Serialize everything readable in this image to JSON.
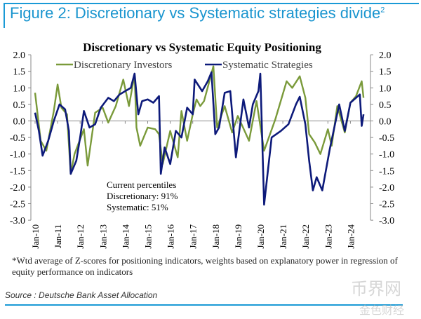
{
  "figure": {
    "title": "Figure 2: Discretionary vs Systematic strategies divide",
    "superscript": "2"
  },
  "footnote": "*Wtd average of Z-scores for positioning indicators, weights based on explanatory power in regression of equity performance on indicators",
  "source": "Source : Deutsche Bank Asset Allocation",
  "watermark": {
    "line1": "币界网",
    "line2": "金色财经"
  },
  "colors": {
    "discretionary": "#7a9a3a",
    "systematic": "#0d1a7a",
    "accent": "#1a9ad6"
  },
  "chart_data": {
    "type": "line",
    "title": "Discretionary  vs Systematic Equity Positioning",
    "ylim": [
      -3.0,
      2.0
    ],
    "y_ticks": [
      "2.0",
      "1.5",
      "1.0",
      "0.5",
      "0.0",
      "-0.5",
      "-1.0",
      "-1.5",
      "-2.0",
      "-2.5",
      "-3.0"
    ],
    "x_ticks": [
      "Jan-10",
      "Jan-11",
      "Jan-12",
      "Jan-13",
      "Jan-14",
      "Jan-15",
      "Jan-16",
      "Jan-17",
      "Jan-18",
      "Jan-19",
      "Jan-20",
      "Jan-21",
      "Jan-22",
      "Jan-23",
      "Jan-24"
    ],
    "grid": false,
    "dual_axis": true,
    "legend_position": "top",
    "annotation": [
      "Current percentiles",
      "Discretionary: 91%",
      "Systematic: 51%"
    ],
    "series": [
      {
        "name": "Discretionary Investors",
        "color": "#7a9a3a",
        "points": [
          [
            "2010-01",
            0.85
          ],
          [
            "2010-04",
            -0.6
          ],
          [
            "2010-07",
            -0.9
          ],
          [
            "2010-11",
            0.3
          ],
          [
            "2011-01",
            1.1
          ],
          [
            "2011-03",
            0.4
          ],
          [
            "2011-06",
            0.2
          ],
          [
            "2011-08",
            -1.6
          ],
          [
            "2011-10",
            -1.0
          ],
          [
            "2012-03",
            -0.25
          ],
          [
            "2012-05",
            -1.35
          ],
          [
            "2012-09",
            0.25
          ],
          [
            "2013-01",
            0.4
          ],
          [
            "2013-04",
            -0.05
          ],
          [
            "2013-08",
            0.45
          ],
          [
            "2013-12",
            1.25
          ],
          [
            "2014-03",
            0.45
          ],
          [
            "2014-06",
            1.4
          ],
          [
            "2014-07",
            -0.2
          ],
          [
            "2014-09",
            -0.75
          ],
          [
            "2015-01",
            -0.2
          ],
          [
            "2015-05",
            -0.25
          ],
          [
            "2015-07",
            -0.4
          ],
          [
            "2015-09",
            -1.3
          ],
          [
            "2016-01",
            -0.3
          ],
          [
            "2016-05",
            -1.1
          ],
          [
            "2016-07",
            0.3
          ],
          [
            "2016-10",
            -0.6
          ],
          [
            "2017-01",
            0.2
          ],
          [
            "2017-03",
            0.65
          ],
          [
            "2017-05",
            0.45
          ],
          [
            "2017-07",
            0.6
          ],
          [
            "2017-12",
            1.65
          ],
          [
            "2018-02",
            -0.2
          ],
          [
            "2018-06",
            0.45
          ],
          [
            "2018-10",
            -0.35
          ],
          [
            "2019-01",
            0.15
          ],
          [
            "2019-07",
            -0.6
          ],
          [
            "2019-11",
            0.6
          ],
          [
            "2020-03",
            -0.9
          ],
          [
            "2020-09",
            0.05
          ],
          [
            "2021-03",
            1.2
          ],
          [
            "2021-06",
            1.0
          ],
          [
            "2021-10",
            1.35
          ],
          [
            "2022-01",
            0.7
          ],
          [
            "2022-03",
            -0.4
          ],
          [
            "2022-06",
            -0.65
          ],
          [
            "2022-09",
            -1.0
          ],
          [
            "2023-01",
            -0.25
          ],
          [
            "2023-03",
            -0.75
          ],
          [
            "2023-06",
            0.45
          ],
          [
            "2023-10",
            -0.35
          ],
          [
            "2024-01",
            0.55
          ],
          [
            "2024-04",
            0.75
          ],
          [
            "2024-07",
            1.2
          ],
          [
            "2024-08",
            0.7
          ]
        ]
      },
      {
        "name": "Systematic Strategies",
        "color": "#0d1a7a",
        "points": [
          [
            "2010-01",
            0.25
          ],
          [
            "2010-03",
            -0.3
          ],
          [
            "2010-05",
            -1.05
          ],
          [
            "2010-08",
            -0.6
          ],
          [
            "2010-11",
            0.0
          ],
          [
            "2011-02",
            0.5
          ],
          [
            "2011-05",
            0.35
          ],
          [
            "2011-07",
            -0.3
          ],
          [
            "2011-08",
            -1.6
          ],
          [
            "2011-11",
            -1.2
          ],
          [
            "2012-01",
            -0.5
          ],
          [
            "2012-03",
            0.3
          ],
          [
            "2012-06",
            -0.2
          ],
          [
            "2012-09",
            -0.1
          ],
          [
            "2012-12",
            0.4
          ],
          [
            "2013-04",
            0.7
          ],
          [
            "2013-07",
            0.6
          ],
          [
            "2013-10",
            0.8
          ],
          [
            "2014-01",
            0.9
          ],
          [
            "2014-04",
            1.0
          ],
          [
            "2014-06",
            1.43
          ],
          [
            "2014-08",
            0.2
          ],
          [
            "2014-10",
            0.6
          ],
          [
            "2015-01",
            0.65
          ],
          [
            "2015-04",
            0.55
          ],
          [
            "2015-07",
            0.75
          ],
          [
            "2015-08",
            -1.6
          ],
          [
            "2015-10",
            -0.8
          ],
          [
            "2016-01",
            -1.3
          ],
          [
            "2016-04",
            -0.3
          ],
          [
            "2016-07",
            -0.5
          ],
          [
            "2016-10",
            0.4
          ],
          [
            "2017-01",
            0.2
          ],
          [
            "2017-02",
            1.25
          ],
          [
            "2017-06",
            0.9
          ],
          [
            "2017-09",
            1.2
          ],
          [
            "2017-11",
            1.47
          ],
          [
            "2018-01",
            -0.4
          ],
          [
            "2018-03",
            -0.2
          ],
          [
            "2018-06",
            0.85
          ],
          [
            "2018-09",
            0.9
          ],
          [
            "2018-12",
            -1.1
          ],
          [
            "2019-04",
            0.65
          ],
          [
            "2019-07",
            -0.2
          ],
          [
            "2019-09",
            0.5
          ],
          [
            "2019-12",
            0.9
          ],
          [
            "2020-01",
            1.43
          ],
          [
            "2020-03",
            -2.53
          ],
          [
            "2020-07",
            -0.5
          ],
          [
            "2020-12",
            -0.3
          ],
          [
            "2021-04",
            -0.1
          ],
          [
            "2021-08",
            0.5
          ],
          [
            "2021-10",
            0.73
          ],
          [
            "2022-01",
            -0.1
          ],
          [
            "2022-03",
            -1.2
          ],
          [
            "2022-05",
            -2.1
          ],
          [
            "2022-07",
            -1.7
          ],
          [
            "2022-10",
            -2.1
          ],
          [
            "2023-02",
            -0.85
          ],
          [
            "2023-07",
            0.5
          ],
          [
            "2023-10",
            -0.3
          ],
          [
            "2024-01",
            0.55
          ],
          [
            "2024-04",
            0.7
          ],
          [
            "2024-06",
            0.8
          ],
          [
            "2024-07",
            -0.15
          ],
          [
            "2024-08",
            0.2
          ]
        ]
      }
    ]
  }
}
